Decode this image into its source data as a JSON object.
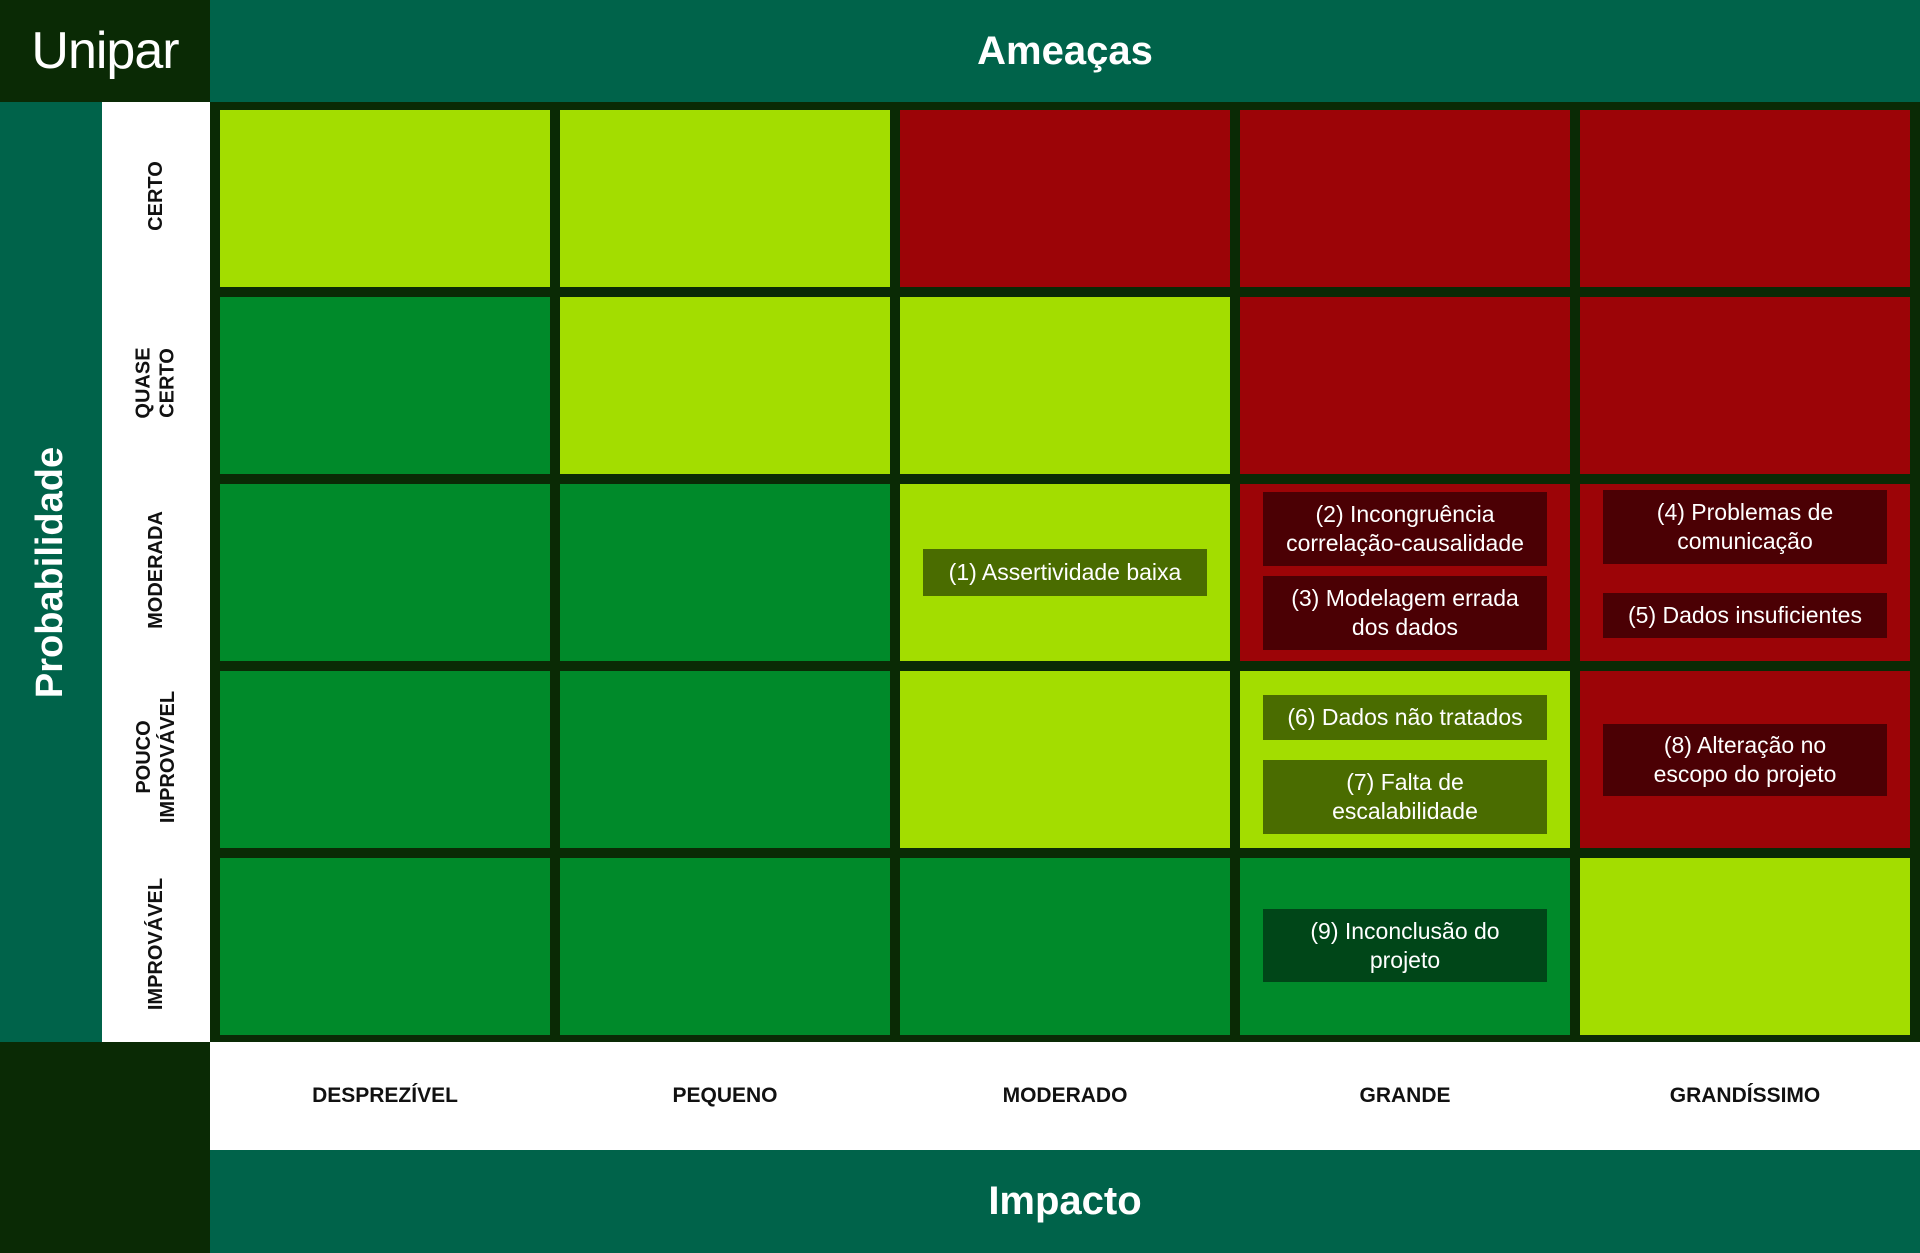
{
  "brand": {
    "logo_text": "Unipar"
  },
  "header": {
    "title": "Ameaças"
  },
  "footer": {
    "title": "Impacto"
  },
  "side": {
    "title": "Probabilidade"
  },
  "rows": [
    {
      "lines": [
        "CERTO"
      ]
    },
    {
      "lines": [
        "QUASE",
        "CERTO"
      ]
    },
    {
      "lines": [
        "MODERADA"
      ]
    },
    {
      "lines": [
        "POUCO",
        "IMPROVÁVEL"
      ]
    },
    {
      "lines": [
        "IMPROVÁVEL"
      ]
    }
  ],
  "columns": [
    "DESPREZÍVEL",
    "PEQUENO",
    "MODERADO",
    "GRANDE",
    "GRANDÍSSIMO"
  ],
  "palette": {
    "lime": "#a3dd00",
    "red": "#9c0407",
    "green": "#008a2a",
    "header_green": "#00634a",
    "dark_frame": "#0a2a05"
  },
  "matrix": [
    [
      "lime",
      "lime",
      "red",
      "red",
      "red"
    ],
    [
      "green",
      "lime",
      "lime",
      "red",
      "red"
    ],
    [
      "green",
      "green",
      "lime",
      "red",
      "red"
    ],
    [
      "green",
      "green",
      "lime",
      "lime",
      "red"
    ],
    [
      "green",
      "green",
      "green",
      "green",
      "lime"
    ]
  ],
  "risks": {
    "r1": "(1) Assertividade baixa",
    "r2_l1": "(2) Incongruência",
    "r2_l2": "correlação-causalidade",
    "r3_l1": "(3) Modelagem errada",
    "r3_l2": "dos dados",
    "r4_l1": "(4) Problemas de",
    "r4_l2": "comunicação",
    "r5": "(5) Dados insuficientes",
    "r6": "(6) Dados não tratados",
    "r7_l1": "(7) Falta de",
    "r7_l2": "escalabilidade",
    "r8_l1": "(8) Alteração no",
    "r8_l2": "escopo do projeto",
    "r9_l1": "(9) Inconclusão do",
    "r9_l2": "projeto"
  }
}
